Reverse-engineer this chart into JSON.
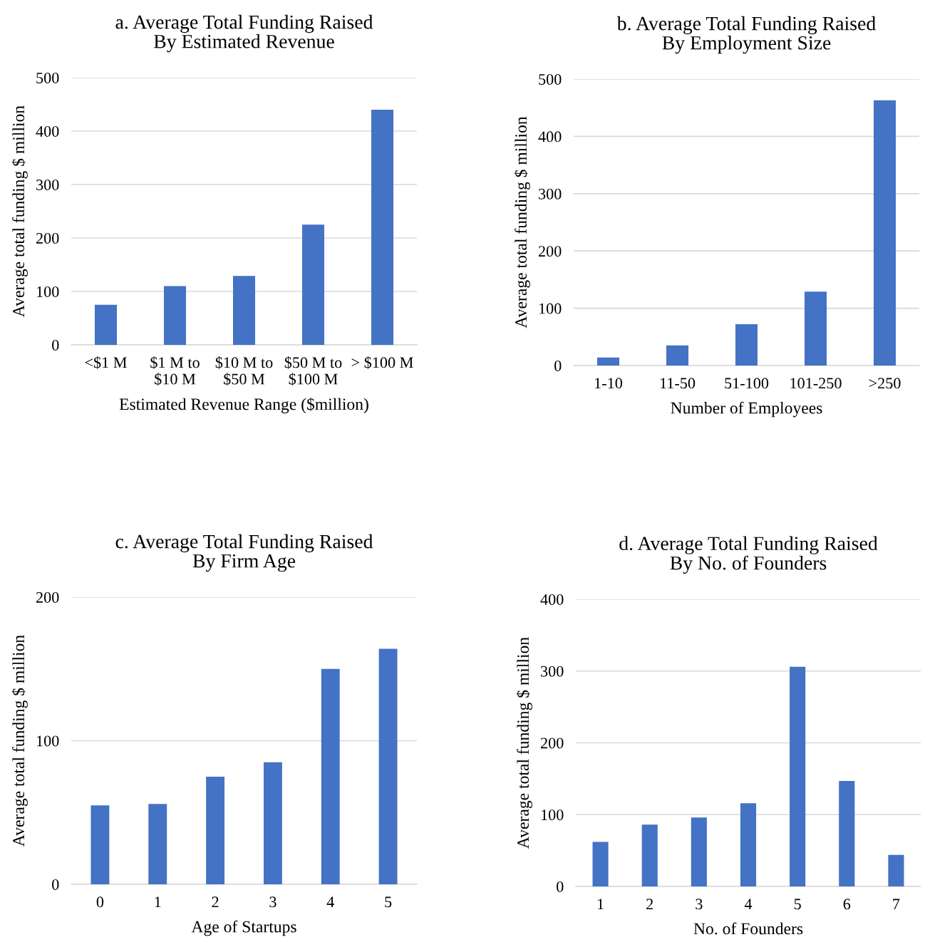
{
  "chart_data": [
    {
      "type": "bar",
      "title": "a. Average Total Funding Raised\nBy Estimated Revenue",
      "xlabel": "Estimated Revenue Range ($million)",
      "ylabel": "Average total funding $ million",
      "categories": [
        "<$1 M",
        "$1 M to\n$10 M",
        "$10 M to\n$50 M",
        "$50 M to\n$100 M",
        "> $100 M"
      ],
      "values": [
        75,
        110,
        129,
        225,
        440
      ],
      "color": "#4472c4",
      "ylim": [
        0,
        500
      ],
      "yticks": [
        0,
        100,
        200,
        300,
        400,
        500
      ],
      "grid": "y",
      "legend": false
    },
    {
      "type": "bar",
      "title": "b. Average Total Funding Raised\nBy Employment Size",
      "xlabel": "Number of Employees",
      "ylabel": "Average total funding $ million",
      "categories": [
        "1-10",
        "11-50",
        "51-100",
        "101-250",
        ">250"
      ],
      "values": [
        14,
        35,
        72,
        129,
        463
      ],
      "color": "#4472c4",
      "ylim": [
        0,
        500
      ],
      "yticks": [
        0,
        100,
        200,
        300,
        400,
        500
      ],
      "grid": "y",
      "legend": false
    },
    {
      "type": "bar",
      "title": "c. Average Total Funding Raised\nBy Firm Age",
      "xlabel": "Age of Startups",
      "ylabel": "Average total funding $ million",
      "categories": [
        "0",
        "1",
        "2",
        "3",
        "4",
        "5"
      ],
      "values": [
        55,
        56,
        75,
        85,
        150,
        164
      ],
      "color": "#4472c4",
      "ylim": [
        0,
        200
      ],
      "yticks": [
        0,
        100,
        200
      ],
      "grid": "y",
      "legend": false
    },
    {
      "type": "bar",
      "title": "d. Average Total Funding Raised\nBy No. of Founders",
      "xlabel": "No. of Founders",
      "ylabel": "Average total funding $ million",
      "categories": [
        "1",
        "2",
        "3",
        "4",
        "5",
        "6",
        "7"
      ],
      "values": [
        62,
        86,
        96,
        116,
        306,
        147,
        44
      ],
      "color": "#4472c4",
      "ylim": [
        0,
        400
      ],
      "yticks": [
        0,
        100,
        200,
        300,
        400
      ],
      "grid": "y",
      "legend": false
    }
  ]
}
